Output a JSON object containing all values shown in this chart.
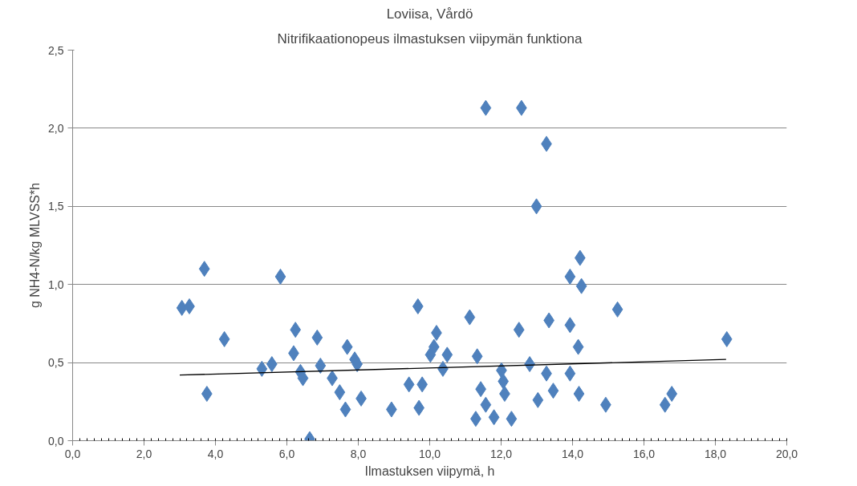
{
  "chart_data": {
    "type": "scatter",
    "title": "Loviisa, Vårdö",
    "subtitle": "Nitrifikaationopeus ilmastuksen viipymän funktiona",
    "xlabel": "Ilmastuksen viipymä, h",
    "ylabel": "g NH4-N/kg MLVSS*h",
    "xlim": [
      0,
      20
    ],
    "ylim": [
      0,
      2.5
    ],
    "xticks": [
      {
        "value": 0,
        "label": "0,0"
      },
      {
        "value": 2,
        "label": "2,0"
      },
      {
        "value": 4,
        "label": "4,0"
      },
      {
        "value": 6,
        "label": "6,0"
      },
      {
        "value": 8,
        "label": "8,0"
      },
      {
        "value": 10,
        "label": "10,0"
      },
      {
        "value": 12,
        "label": "12,0"
      },
      {
        "value": 14,
        "label": "14,0"
      },
      {
        "value": 16,
        "label": "16,0"
      },
      {
        "value": 18,
        "label": "18,0"
      },
      {
        "value": 20,
        "label": "20,0"
      }
    ],
    "yticks": [
      {
        "value": 0,
        "label": "0,0"
      },
      {
        "value": 0.5,
        "label": "0,5"
      },
      {
        "value": 1,
        "label": "1,0"
      },
      {
        "value": 1.5,
        "label": "1,5"
      },
      {
        "value": 2,
        "label": "2,0"
      },
      {
        "value": 2.5,
        "label": "2,5"
      }
    ],
    "grid": "y",
    "series": [
      {
        "marker": "diamond",
        "color": "#4f81bd",
        "x": [
          3.06,
          3.27,
          3.69,
          3.76,
          4.25,
          5.3,
          5.58,
          5.82,
          6.19,
          6.24,
          6.38,
          6.45,
          6.64,
          6.85,
          6.94,
          7.27,
          7.48,
          7.64,
          7.69,
          7.9,
          7.97,
          8.08,
          8.93,
          9.42,
          9.67,
          9.7,
          9.79,
          10.02,
          10.12,
          10.19,
          10.37,
          10.49,
          11.12,
          11.29,
          11.33,
          11.43,
          11.57,
          11.57,
          11.8,
          12.01,
          12.06,
          12.1,
          12.29,
          12.5,
          12.57,
          12.8,
          12.99,
          13.03,
          13.27,
          13.27,
          13.34,
          13.46,
          13.93,
          13.93,
          13.93,
          14.16,
          14.18,
          14.21,
          14.25,
          14.93,
          15.26,
          16.59,
          16.78,
          18.32
        ],
        "values": [
          0.85,
          0.86,
          1.1,
          0.3,
          0.65,
          0.46,
          0.49,
          1.05,
          0.56,
          0.71,
          0.44,
          0.4,
          0.01,
          0.66,
          0.48,
          0.4,
          0.31,
          0.2,
          0.6,
          0.52,
          0.49,
          0.27,
          0.2,
          0.36,
          0.86,
          0.21,
          0.36,
          0.55,
          0.6,
          0.69,
          0.46,
          0.55,
          0.79,
          0.14,
          0.54,
          0.33,
          2.13,
          0.23,
          0.15,
          0.45,
          0.38,
          0.3,
          0.14,
          0.71,
          2.13,
          0.49,
          1.5,
          0.26,
          1.9,
          0.43,
          0.77,
          0.32,
          1.05,
          0.74,
          0.43,
          0.6,
          0.3,
          1.17,
          0.99,
          0.23,
          0.84,
          0.23,
          0.3,
          0.65
        ]
      },
      {
        "type": "line",
        "color": "#000000",
        "x": [
          3.0,
          18.3
        ],
        "values": [
          0.42,
          0.52
        ]
      }
    ]
  }
}
